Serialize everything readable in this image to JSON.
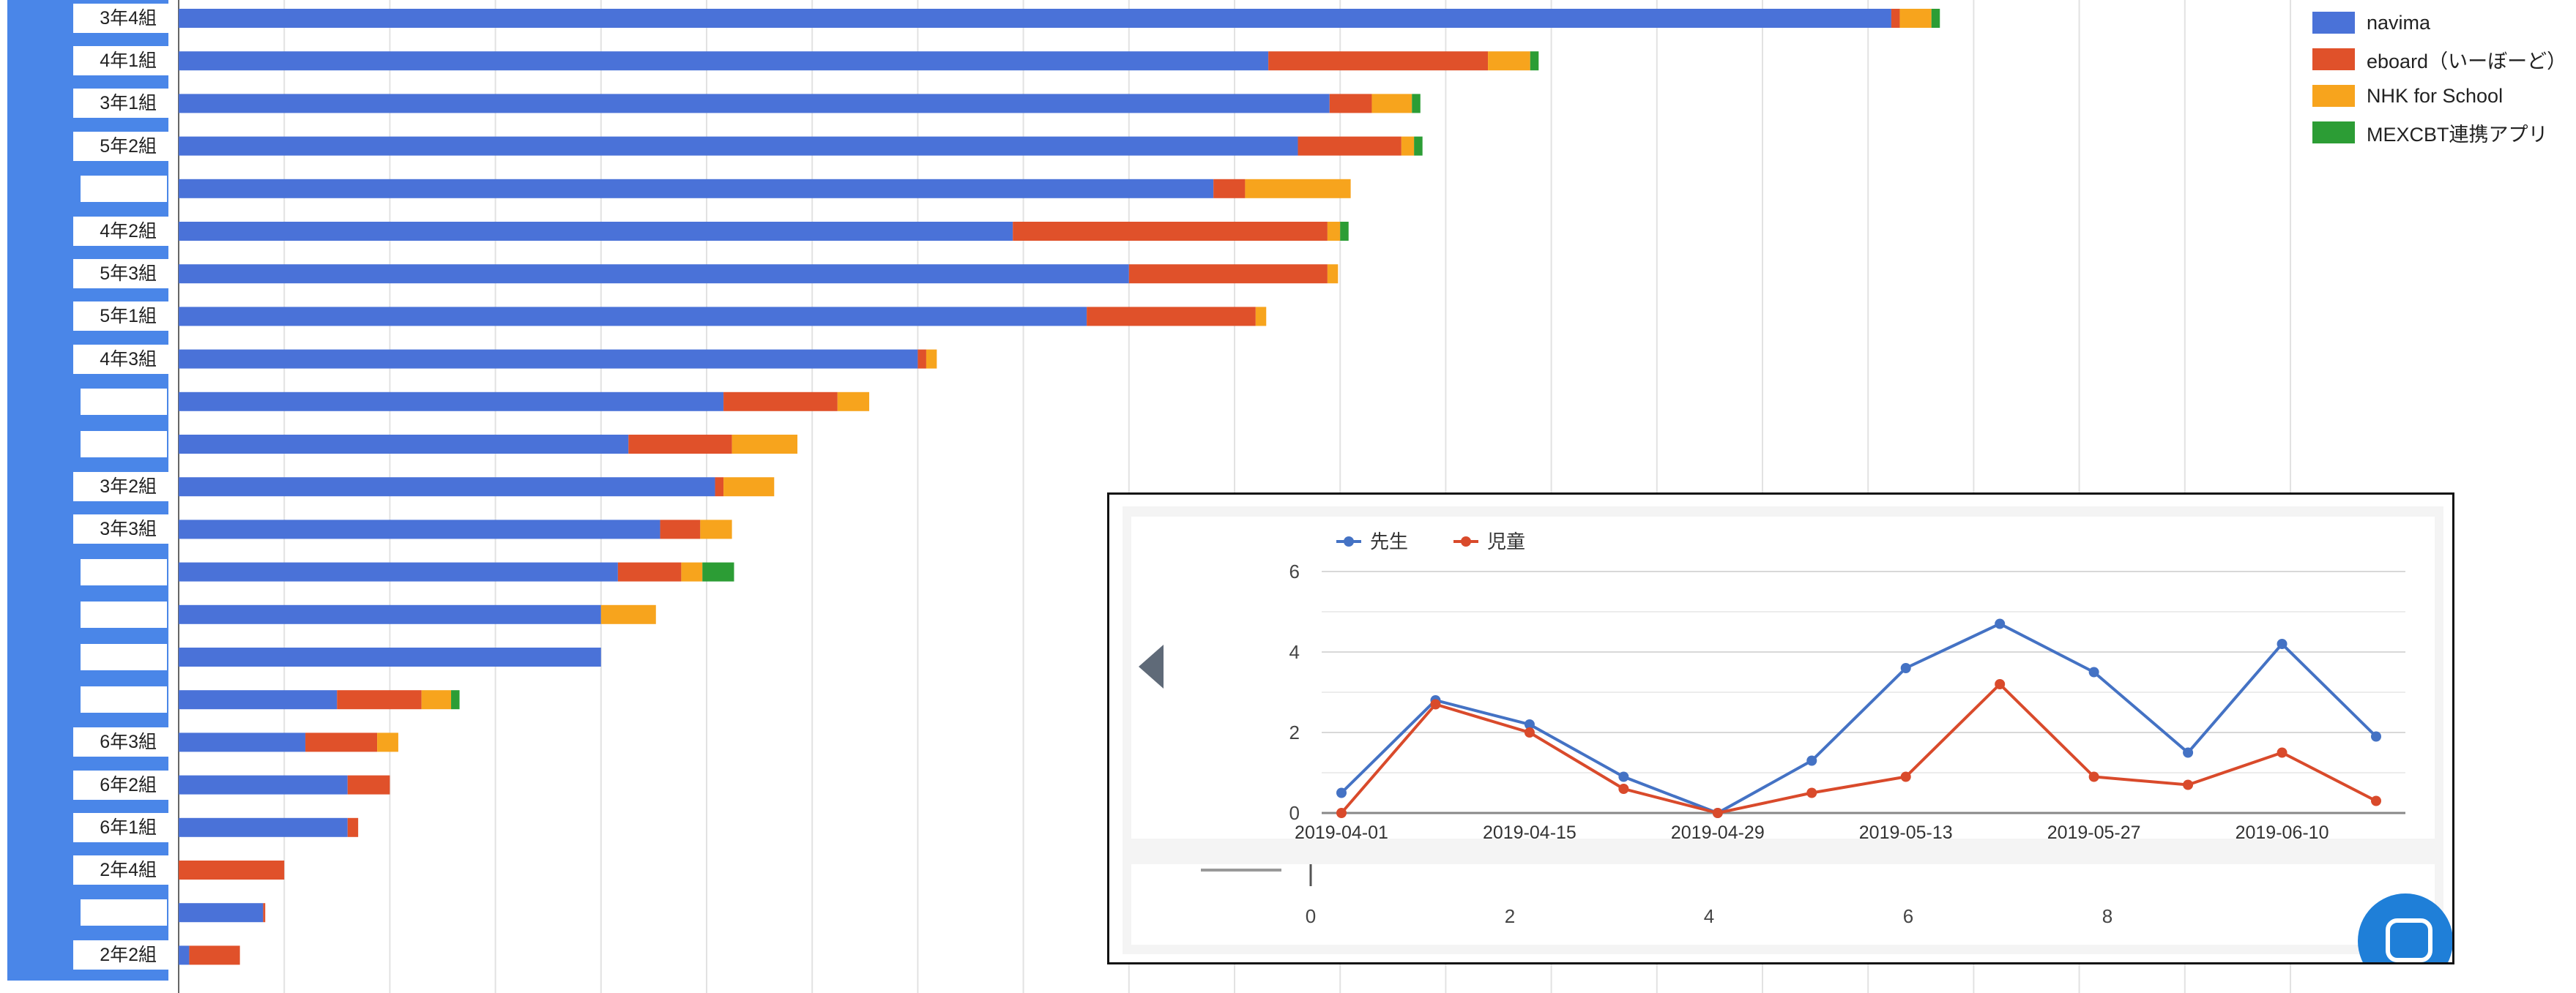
{
  "chart_data": [
    {
      "type": "bar",
      "orientation": "horizontal",
      "stacked": true,
      "categories": [
        "3年4組",
        "4年1組",
        "3年1組",
        "5年2組",
        "",
        "4年2組",
        "5年3組",
        "5年1組",
        "4年3組",
        "",
        "",
        "3年2組",
        "3年3組",
        "",
        "",
        "",
        "",
        "6年3組",
        "6年2組",
        "6年1組",
        "2年4組",
        "",
        "2年2組"
      ],
      "series": [
        {
          "name": "navima",
          "color": "#4a72d8",
          "values": [
            81.1,
            51.6,
            54.5,
            53.0,
            49.0,
            39.5,
            45.0,
            43.0,
            35.0,
            25.8,
            21.3,
            25.4,
            22.8,
            20.8,
            20.0,
            20.0,
            7.5,
            6.0,
            8.0,
            8.0,
            0,
            4.0,
            0.5
          ]
        },
        {
          "name": "eboard（いーぼーど）",
          "color": "#e0512a",
          "values": [
            0.4,
            10.4,
            2.0,
            4.9,
            1.5,
            14.9,
            9.4,
            8.0,
            0.4,
            5.4,
            4.9,
            0.4,
            1.9,
            3.0,
            0,
            0,
            4.0,
            3.4,
            2.0,
            0.5,
            5.0,
            0.1,
            2.4
          ]
        },
        {
          "name": "NHK for School",
          "color": "#f7a41d",
          "values": [
            1.5,
            2.0,
            1.9,
            0.6,
            5.0,
            0.6,
            0.5,
            0.5,
            0.5,
            1.5,
            3.1,
            2.4,
            1.5,
            1.0,
            2.6,
            0,
            1.4,
            1.0,
            0,
            0,
            0,
            0,
            0
          ]
        },
        {
          "name": "MEXCBT連携アプリ",
          "color": "#2c9d35",
          "values": [
            0.4,
            0.4,
            0.4,
            0.4,
            0,
            0.4,
            0,
            0,
            0,
            0,
            0,
            0,
            0,
            1.5,
            0,
            0,
            0.4,
            0,
            0,
            0,
            0,
            0,
            0
          ]
        }
      ],
      "xlim": [
        0,
        100
      ],
      "legend": "top-right",
      "grid": true
    },
    {
      "type": "line",
      "x": [
        "2019-04-01",
        "2019-04-08",
        "2019-04-15",
        "2019-04-22",
        "2019-04-29",
        "2019-05-06",
        "2019-05-13",
        "2019-05-20",
        "2019-05-27",
        "2019-06-03",
        "2019-06-10",
        "2019-06-17"
      ],
      "series": [
        {
          "name": "先生",
          "color": "#4472c4",
          "values": [
            0.5,
            2.8,
            2.2,
            0.9,
            0,
            1.3,
            3.6,
            4.7,
            3.5,
            1.5,
            4.2,
            1.9
          ]
        },
        {
          "name": "児童",
          "color": "#d94a2b",
          "values": [
            0,
            2.7,
            2.0,
            0.6,
            0,
            0.5,
            0.9,
            3.2,
            0.9,
            0.7,
            1.5,
            0.3
          ]
        }
      ],
      "yticks": [
        "0",
        "2",
        "4",
        "6"
      ],
      "ylim": [
        0,
        6
      ],
      "legend": "top-left",
      "grid": true
    },
    {
      "type": "scatter",
      "xticks": [
        "0",
        "2",
        "4",
        "6",
        "8"
      ],
      "xlim": [
        0,
        9
      ]
    }
  ]
}
